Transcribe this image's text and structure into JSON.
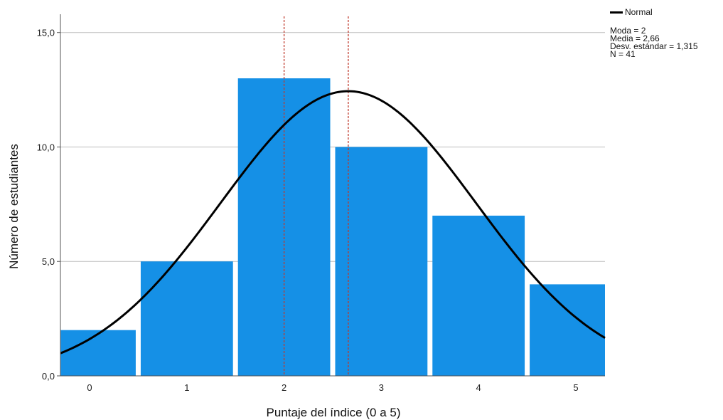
{
  "chart_data": {
    "type": "bar",
    "categories": [
      "0",
      "1",
      "2",
      "3",
      "4",
      "5"
    ],
    "values": [
      2,
      5,
      13,
      10,
      7,
      4
    ],
    "xlabel": "Puntaje del índice (0 a 5)",
    "ylabel": "Número de estudiantes",
    "ylim": [
      0,
      15.8
    ],
    "yticks": [
      "0,0",
      "5,0",
      "10,0",
      "15,0"
    ],
    "ytick_values": [
      0,
      5,
      10,
      15
    ],
    "grid": true,
    "bar_color": "#1590e6",
    "mode": 2,
    "mean": 2.66,
    "std": 1.315,
    "n": 41,
    "reference_lines": [
      {
        "x": 2,
        "color": "#c0392b",
        "style": "dotted"
      },
      {
        "x": 2.66,
        "color": "#c0392b",
        "style": "dotted"
      }
    ],
    "normal_curve": {
      "label": "Normal",
      "mean": 2.66,
      "std": 1.315,
      "n": 41,
      "bin_width": 1,
      "color": "#000000"
    }
  },
  "legend": {
    "normal_label": "Normal",
    "stats": [
      "Moda = 2",
      "Media = 2,66",
      "Desv. estándar = 1,315",
      "N = 41"
    ],
    "placement": "top-right"
  }
}
